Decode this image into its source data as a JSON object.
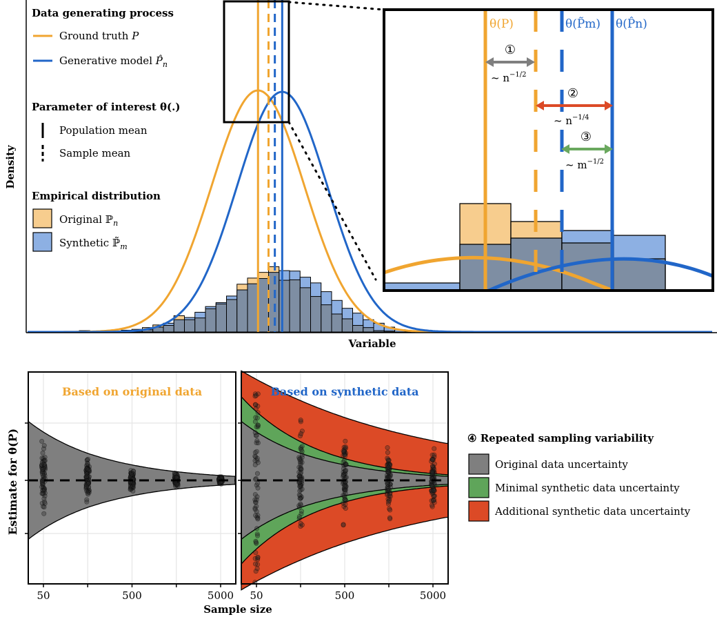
{
  "colors": {
    "orange": "#F0A530",
    "blue": "#2166C8",
    "orange_fill": "#F7CD8E",
    "blue_fill": "#8DB0E3",
    "overlap_fill": "#7E8EA3",
    "gray_band": "#7F7F7F",
    "green_band": "#5FA55A",
    "red_band": "#DC4A26",
    "arrow_gray": "#7F7F7F",
    "arrow_red": "#DC4A26",
    "arrow_green": "#6AA85E"
  },
  "legend_top": {
    "section1_title": "Data generating process",
    "ground_truth_label": "Ground truth ",
    "ground_truth_symbol": "P",
    "generative_label": "Generative model ",
    "generative_symbol": "P̂",
    "generative_sub": "n",
    "section2_title": "Parameter of interest θ(.)",
    "population_mean": "Population mean",
    "sample_mean": "Sample mean",
    "section3_title": "Empirical distribution",
    "original_label": "Original ",
    "original_symbol": "ℙ",
    "original_sub": "n",
    "synthetic_label": "Synthetic ",
    "synthetic_symbol": "ℙ̃",
    "synthetic_sub": "m"
  },
  "inset": {
    "theta_P": "θ(P)",
    "theta_Pm": "θ(P̃m)",
    "theta_Pn": "θ(P̂n)",
    "label_1": "①",
    "label_2": "②",
    "label_3": "③",
    "rate_1": "~ n",
    "rate_1_exp": "−1/2",
    "rate_2": "~ n",
    "rate_2_exp": "−1/4",
    "rate_3": "~ m",
    "rate_3_exp": "−1/2"
  },
  "legend_bottom": {
    "title_marker": "④",
    "title": "Repeated sampling variability",
    "item1": "Original data uncertainty",
    "item2": "Minimal synthetic data uncertainty",
    "item3": "Additional synthetic data uncertainty"
  },
  "chart_data": [
    {
      "type": "bar",
      "xlabel": "Variable",
      "ylabel": "Density",
      "bin_count": 36,
      "series": [
        {
          "name": "Original ℙn",
          "color": "#F7CD8E",
          "values": [
            0.3,
            0,
            0.2,
            0.1,
            0.4,
            0.6,
            1.0,
            1.6,
            1.5,
            3.7,
            2.8,
            3.2,
            5.3,
            6.4,
            7.4,
            10.9,
            12.3,
            13.6,
            14.9,
            11.8,
            11.9,
            10.1,
            8.1,
            6.2,
            4.1,
            3.0,
            1.5,
            1.0,
            0.3,
            0.2,
            0,
            0,
            0,
            0,
            0,
            0
          ]
        },
        {
          "name": "Synthetic ℙ̃m",
          "color": "#8DB0E3",
          "values": [
            0,
            0,
            0,
            0,
            0.1,
            0.2,
            0.5,
            1.1,
            2.0,
            2.8,
            3.3,
            4.5,
            5.8,
            6.7,
            8.2,
            9.6,
            11.0,
            12.2,
            13.6,
            14.0,
            13.9,
            12.5,
            11.2,
            9.2,
            7.2,
            5.4,
            4.3,
            2.8,
            2.0,
            1.1,
            0.5,
            0.3,
            0.2,
            0.1,
            0,
            0
          ]
        }
      ],
      "lines": [
        {
          "name": "Ground truth P",
          "color": "#F0A530",
          "shape": "normal-density",
          "mean_bin": 17.0,
          "sd_bins": 4.4
        },
        {
          "name": "Generative model P̂n",
          "color": "#2166C8",
          "shape": "normal-density",
          "mean_bin": 19.3,
          "sd_bins": 4.3
        }
      ],
      "vertical_lines": [
        {
          "name": "θ(P)",
          "style": "solid",
          "color": "#F0A530",
          "x_bin": 17.0
        },
        {
          "name": "sample mean original",
          "style": "dashed",
          "color": "#F0A530",
          "x_bin": 18.0
        },
        {
          "name": "θ(P̃m)",
          "style": "dashed",
          "color": "#2166C8",
          "x_bin": 18.6
        },
        {
          "name": "θ(P̂n)",
          "style": "solid",
          "color": "#2166C8",
          "x_bin": 19.3
        }
      ]
    },
    {
      "type": "scatter",
      "title": "Based on original data",
      "xlabel": "Sample size",
      "ylabel": "Estimate for θ(P)",
      "x_scale": "log",
      "x_ticks": [
        "50",
        "500",
        "5000"
      ],
      "x": [
        50,
        158,
        500,
        1581,
        5000
      ],
      "band_half_width_original": [
        1.0,
        0.56,
        0.32,
        0.18,
        0.1
      ],
      "spread_points": [
        1.0,
        0.56,
        0.32,
        0.18,
        0.1
      ]
    },
    {
      "type": "scatter",
      "title": "Based on synthetic data",
      "xlabel": "Sample size",
      "ylabel": "",
      "x_scale": "log",
      "x_ticks": [
        "50",
        "500",
        "5000"
      ],
      "x": [
        50,
        158,
        500,
        1581,
        5000
      ],
      "band_half_width_original": [
        1.0,
        0.56,
        0.32,
        0.18,
        0.1
      ],
      "band_half_width_minimal": [
        1.42,
        0.8,
        0.45,
        0.25,
        0.14
      ],
      "band_half_width_additional": [
        2.09,
        1.65,
        1.3,
        1.03,
        0.82
      ],
      "spread_points": [
        3.4,
        1.6,
        1.3,
        1.0,
        0.8
      ]
    }
  ]
}
